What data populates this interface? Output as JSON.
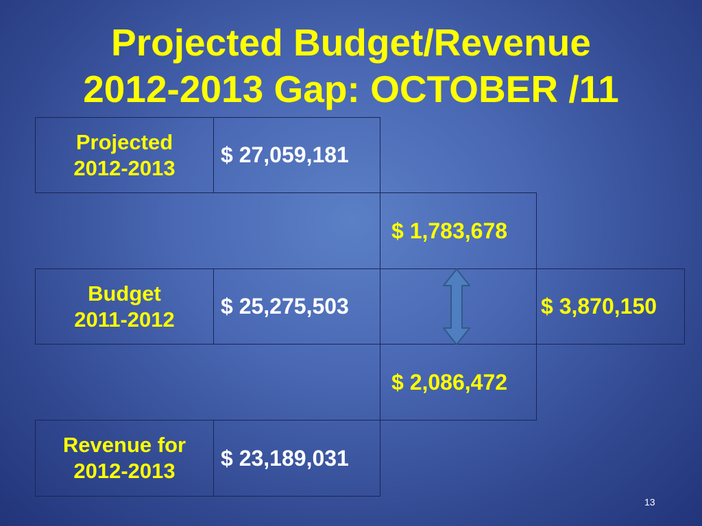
{
  "slide": {
    "title_line1": "Projected Budget/Revenue",
    "title_line2": "2012-2013 Gap: OCTOBER /11",
    "page_number": "13"
  },
  "table": {
    "projected": {
      "label_line1": "Projected",
      "label_line2": "2012-2013",
      "amount": "$ 27,059,181"
    },
    "budget": {
      "label_line1": "Budget",
      "label_line2": "2011-2012",
      "amount": "$ 25,275,503"
    },
    "revenue": {
      "label_line1": "Revenue for",
      "label_line2": "2012-2013",
      "amount": "$ 23,189,031"
    },
    "gap_upper": "$ 1,783,678",
    "gap_lower": "$ 2,086,472",
    "gap_total": "$ 3,870,150"
  },
  "colors": {
    "title": "#ffff00",
    "label": "#ffff00",
    "amount": "#ffffff",
    "background": "#4a68b4",
    "arrow_fill": "#4f7fc0",
    "arrow_stroke": "#2f5a8a"
  },
  "icons": {
    "arrow": "double-headed-vertical-arrow"
  }
}
